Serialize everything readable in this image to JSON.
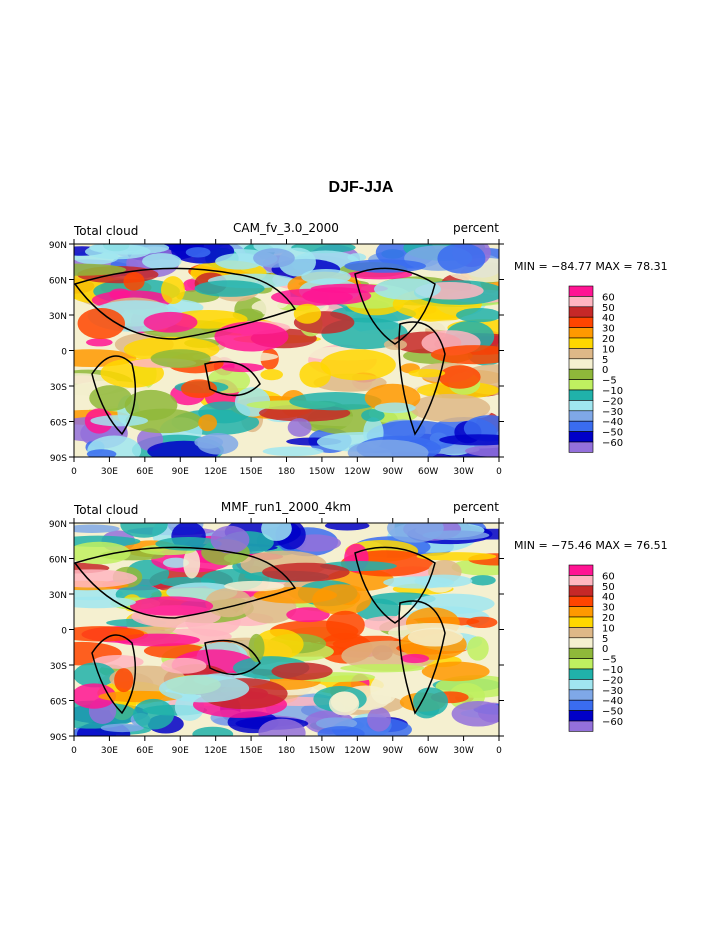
{
  "title": "DJF-JJA",
  "panels": [
    {
      "left_label": "Total cloud",
      "center_label": "CAM_fv_3.0_2000",
      "right_label": "percent",
      "stats": "MIN = −84.77  MAX =   78.31"
    },
    {
      "left_label": "Total cloud",
      "center_label": "MMF_run1_2000_4km",
      "right_label": "percent",
      "stats": "MIN = −75.46  MAX =   76.51"
    }
  ],
  "lat_ticks": [
    "90N",
    "60N",
    "30N",
    "0",
    "30S",
    "60S",
    "90S"
  ],
  "lon_ticks": [
    "0",
    "30E",
    "60E",
    "90E",
    "120E",
    "150E",
    "180",
    "150W",
    "120W",
    "90W",
    "60W",
    "30W",
    "0"
  ],
  "colorbar": {
    "labels": [
      "60",
      "50",
      "40",
      "30",
      "20",
      "10",
      "5",
      "0",
      "−5",
      "−10",
      "−20",
      "−30",
      "−40",
      "−50",
      "−60"
    ],
    "colors": [
      "#ff1493",
      "#ffb6c1",
      "#c62828",
      "#ff4500",
      "#ff9900",
      "#ffd700",
      "#deb887",
      "#f5f0d0",
      "#8fb83a",
      "#bff060",
      "#20b2aa",
      "#a0e6f0",
      "#7fa8e8",
      "#3a6cf0",
      "#0000c8",
      "#9370db"
    ]
  }
}
